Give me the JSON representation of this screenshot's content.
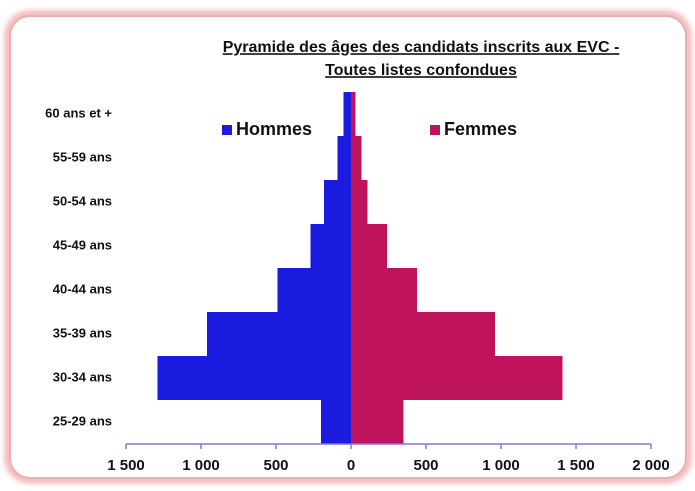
{
  "chart_data": {
    "type": "pyramid",
    "title": [
      "Pyramide des âges des candidats inscrits aux EVC -",
      "Toutes listes confondues"
    ],
    "categories": [
      "60 ans et +",
      "55-59 ans",
      "50-54 ans",
      "45-49 ans",
      "40-44 ans",
      "35-39 ans",
      "30-34 ans",
      "25-29 ans"
    ],
    "series": [
      {
        "name": "Hommes",
        "color": "#1b1be0",
        "values": [
          -50,
          -90,
          -180,
          -270,
          -490,
          -960,
          -1290,
          -200
        ]
      },
      {
        "name": "Femmes",
        "color": "#c0135e",
        "values": [
          30,
          70,
          110,
          240,
          440,
          960,
          1410,
          350
        ]
      }
    ],
    "xlim": [
      -1500,
      2000
    ],
    "xticks": [
      {
        "value": -1500,
        "label": "1 500"
      },
      {
        "value": -1000,
        "label": "1 000"
      },
      {
        "value": -500,
        "label": "500"
      },
      0,
      500,
      {
        "value": 1000,
        "label": "1 000"
      },
      {
        "value": 1500,
        "label": "1 500"
      },
      {
        "value": 2000,
        "label": "2 000"
      }
    ]
  }
}
